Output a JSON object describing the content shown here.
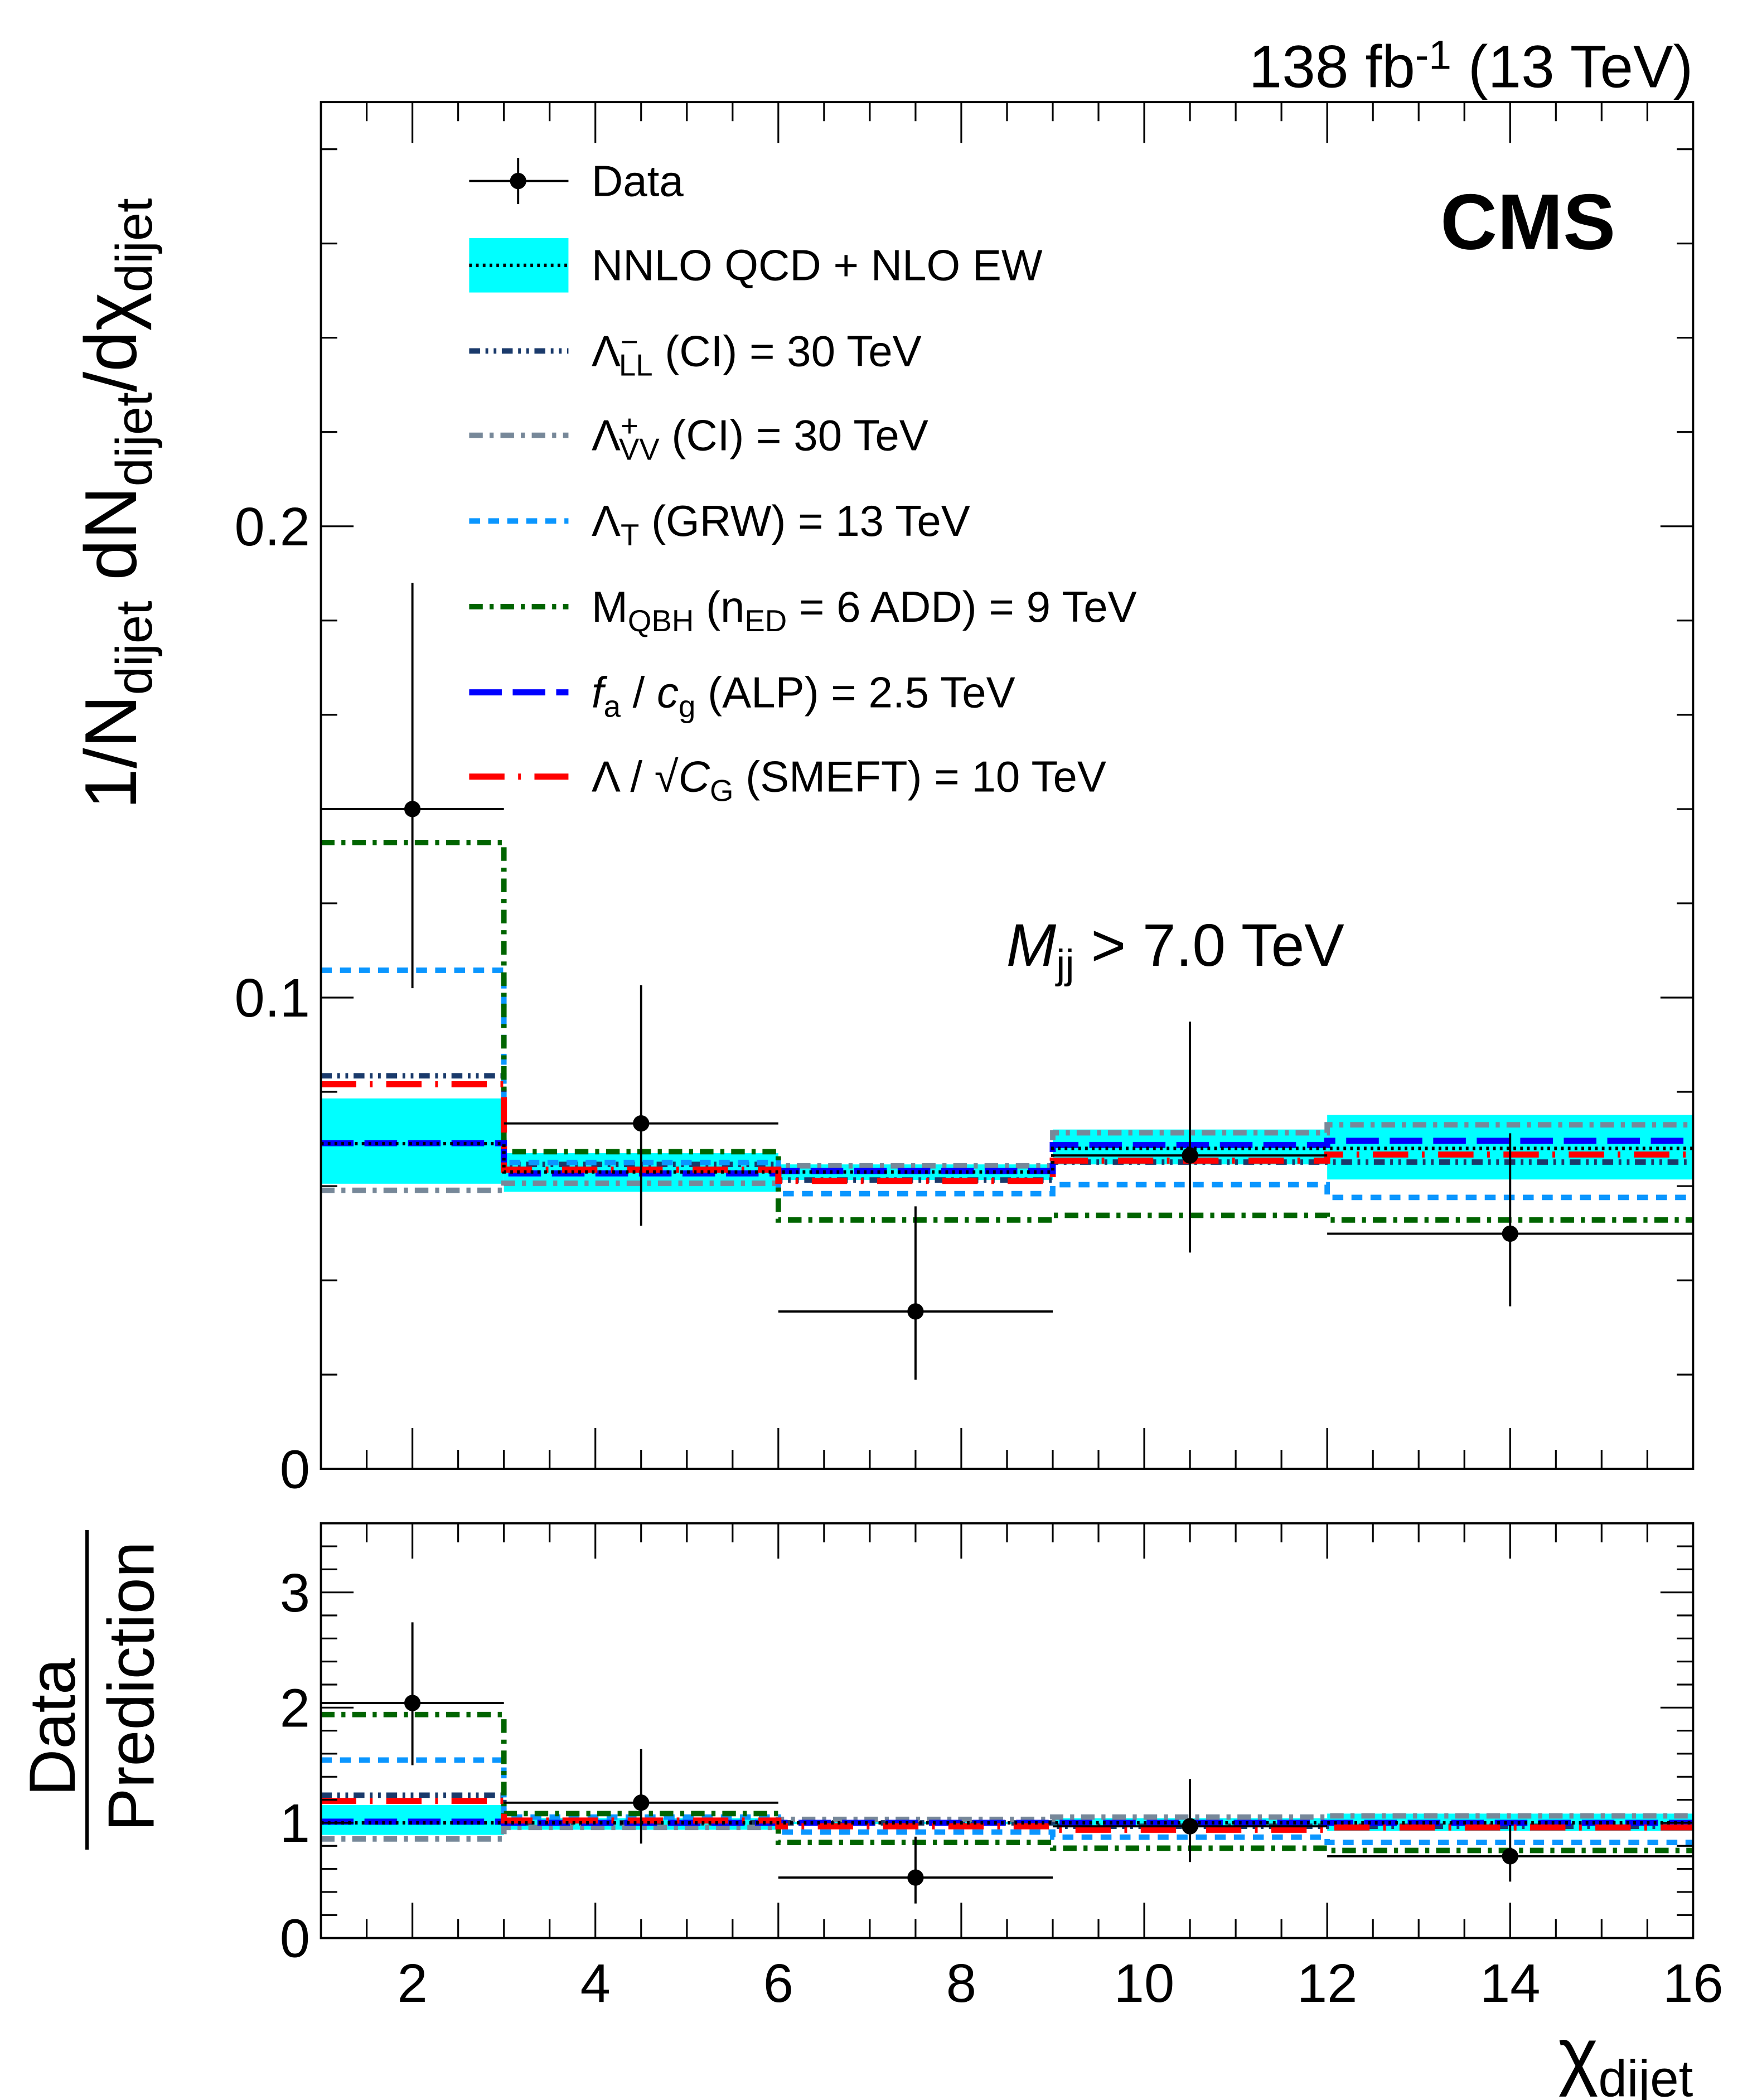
{
  "header": {
    "lumi_main": "138 fb",
    "lumi_sup": "-1",
    "lumi_rest": " (13 TeV)",
    "experiment": "CMS",
    "cut_M": "M",
    "cut_sub": "jj",
    "cut_rest": " > 7.0 TeV"
  },
  "axes": {
    "ylabel_main": [
      {
        "t": "1/N"
      },
      {
        "t": "dijet",
        "s": "sub"
      },
      {
        "t": " dN"
      },
      {
        "t": "dijet",
        "s": "sub"
      },
      {
        "t": "/dχ"
      },
      {
        "t": "dijet",
        "s": "sub"
      }
    ],
    "ylabel_ratio_num": "Data",
    "ylabel_ratio_den": "Prediction",
    "xlabel_main": "χ",
    "xlabel_sub": "dijet",
    "yticks_main": [
      "0",
      "0.1",
      "0.2"
    ],
    "yticks_ratio": [
      "0",
      "1",
      "2",
      "3"
    ],
    "xticks": [
      "2",
      "4",
      "6",
      "8",
      "10",
      "12",
      "14",
      "16"
    ]
  },
  "legend": [
    {
      "key": "data",
      "parts": [
        {
          "t": "Data"
        }
      ]
    },
    {
      "key": "nnlo",
      "parts": [
        {
          "t": "NNLO QCD + NLO EW"
        }
      ]
    },
    {
      "key": "ll",
      "parts": [
        {
          "t": "Λ"
        },
        {
          "t": "−",
          "s": "sup"
        },
        {
          "t": "LL",
          "s": "sub",
          "back": true
        },
        {
          "t": " (CI) = 30 TeV"
        }
      ]
    },
    {
      "key": "vv",
      "parts": [
        {
          "t": "Λ"
        },
        {
          "t": "+",
          "s": "sup"
        },
        {
          "t": "VV",
          "s": "sub",
          "back": true
        },
        {
          "t": " (CI) = 30 TeV"
        }
      ]
    },
    {
      "key": "grw",
      "parts": [
        {
          "t": "Λ"
        },
        {
          "t": "T",
          "s": "sub"
        },
        {
          "t": " (GRW) = 13 TeV"
        }
      ]
    },
    {
      "key": "qbh",
      "parts": [
        {
          "t": "M"
        },
        {
          "t": "QBH",
          "s": "sub"
        },
        {
          "t": " (n"
        },
        {
          "t": "ED",
          "s": "sub"
        },
        {
          "t": " = 6 ADD) = 9 TeV"
        }
      ]
    },
    {
      "key": "alp",
      "parts": [
        {
          "t": "f",
          "i": true
        },
        {
          "t": "a",
          "s": "sub"
        },
        {
          "t": " / "
        },
        {
          "t": "c",
          "i": true
        },
        {
          "t": "g",
          "s": "sub"
        },
        {
          "t": " (ALP) = 2.5 TeV"
        }
      ]
    },
    {
      "key": "smeft",
      "parts": [
        {
          "t": "Λ / √"
        },
        {
          "t": "C",
          "i": true
        },
        {
          "t": "G",
          "s": "sub"
        },
        {
          "t": " (SMEFT) = 10 TeV"
        }
      ]
    }
  ],
  "styles": {
    "data": {
      "color": "#000000"
    },
    "nnlo": {
      "color": "#000000",
      "band": "#00ffff",
      "dash": "dotted"
    },
    "ll": {
      "color": "#1a3a6b",
      "dash": "dash-dot-dot"
    },
    "vv": {
      "color": "#778899",
      "dash": "dash-dot"
    },
    "grw": {
      "color": "#0a96ff",
      "dash": "dashed"
    },
    "qbh": {
      "color": "#006400",
      "dash": "dash-dot"
    },
    "alp": {
      "color": "#0000ff",
      "dash": "long-dashed"
    },
    "smeft": {
      "color": "#ff0000",
      "dash": "long-dash-dot"
    }
  },
  "chart_data": [
    {
      "type": "step",
      "panel": "main",
      "bin_edges": [
        1,
        3,
        6,
        9,
        12,
        16
      ],
      "xlim": [
        1,
        16
      ],
      "ylim": [
        0,
        0.29
      ],
      "data": {
        "x": [
          2,
          4.5,
          7.5,
          10.5,
          14
        ],
        "y": [
          0.14,
          0.0733,
          0.0334,
          0.0665,
          0.0499
        ],
        "y_low": [
          0.102,
          0.0516,
          0.0189,
          0.0459,
          0.0345
        ],
        "y_high": [
          0.188,
          0.1026,
          0.0557,
          0.0949,
          0.0712
        ]
      },
      "band": {
        "key": "nnlo",
        "center": [
          0.069,
          0.063,
          0.063,
          0.068,
          0.068
        ],
        "low": [
          0.0605,
          0.0588,
          0.0613,
          0.0646,
          0.0614
        ],
        "high": [
          0.0786,
          0.067,
          0.0646,
          0.072,
          0.0751
        ]
      },
      "series": [
        {
          "key": "ll",
          "values": [
            0.0834,
            0.0646,
            0.0613,
            0.0651,
            0.0651
          ]
        },
        {
          "key": "vv",
          "values": [
            0.0591,
            0.0606,
            0.0643,
            0.0713,
            0.073
          ]
        },
        {
          "key": "grw",
          "values": [
            0.1058,
            0.065,
            0.0584,
            0.0603,
            0.0576
          ]
        },
        {
          "key": "qbh",
          "values": [
            0.1329,
            0.0673,
            0.0528,
            0.0538,
            0.0528
          ]
        },
        {
          "key": "alp",
          "values": [
            0.0691,
            0.0627,
            0.0632,
            0.0687,
            0.0696
          ]
        },
        {
          "key": "smeft",
          "values": [
            0.0816,
            0.0635,
            0.0611,
            0.0654,
            0.0667
          ]
        }
      ]
    },
    {
      "type": "step",
      "panel": "ratio",
      "bin_edges": [
        1,
        3,
        6,
        9,
        12,
        16
      ],
      "xlim": [
        1,
        16
      ],
      "ylim": [
        0,
        3.6
      ],
      "data": {
        "x": [
          2,
          4.5,
          7.5,
          10.5,
          14
        ],
        "y": [
          2.04,
          1.175,
          0.525,
          0.97,
          0.71
        ],
        "y_low": [
          1.5,
          0.82,
          0.3,
          0.66,
          0.49
        ],
        "y_high": [
          2.74,
          1.64,
          0.88,
          1.38,
          0.98
        ]
      },
      "band": {
        "key": "nnlo",
        "center": [
          1,
          1,
          1,
          1,
          1
        ],
        "low": [
          0.895,
          0.94,
          0.99,
          0.97,
          0.93
        ],
        "high": [
          1.155,
          1.04,
          1.01,
          1.04,
          1.08
        ]
      },
      "series": [
        {
          "key": "ll",
          "values": [
            1.24,
            1.0,
            1.0,
            0.97,
            0.97
          ]
        },
        {
          "key": "vv",
          "values": [
            0.86,
            0.96,
            1.03,
            1.05,
            1.06
          ]
        },
        {
          "key": "grw",
          "values": [
            1.545,
            1.05,
            0.92,
            0.876,
            0.83
          ]
        },
        {
          "key": "qbh",
          "values": [
            1.94,
            1.08,
            0.83,
            0.78,
            0.76
          ]
        },
        {
          "key": "alp",
          "values": [
            1.01,
            1.0,
            1.0,
            1.0,
            1.0
          ]
        },
        {
          "key": "smeft",
          "values": [
            1.19,
            1.02,
            0.97,
            0.94,
            0.96
          ]
        }
      ]
    }
  ]
}
